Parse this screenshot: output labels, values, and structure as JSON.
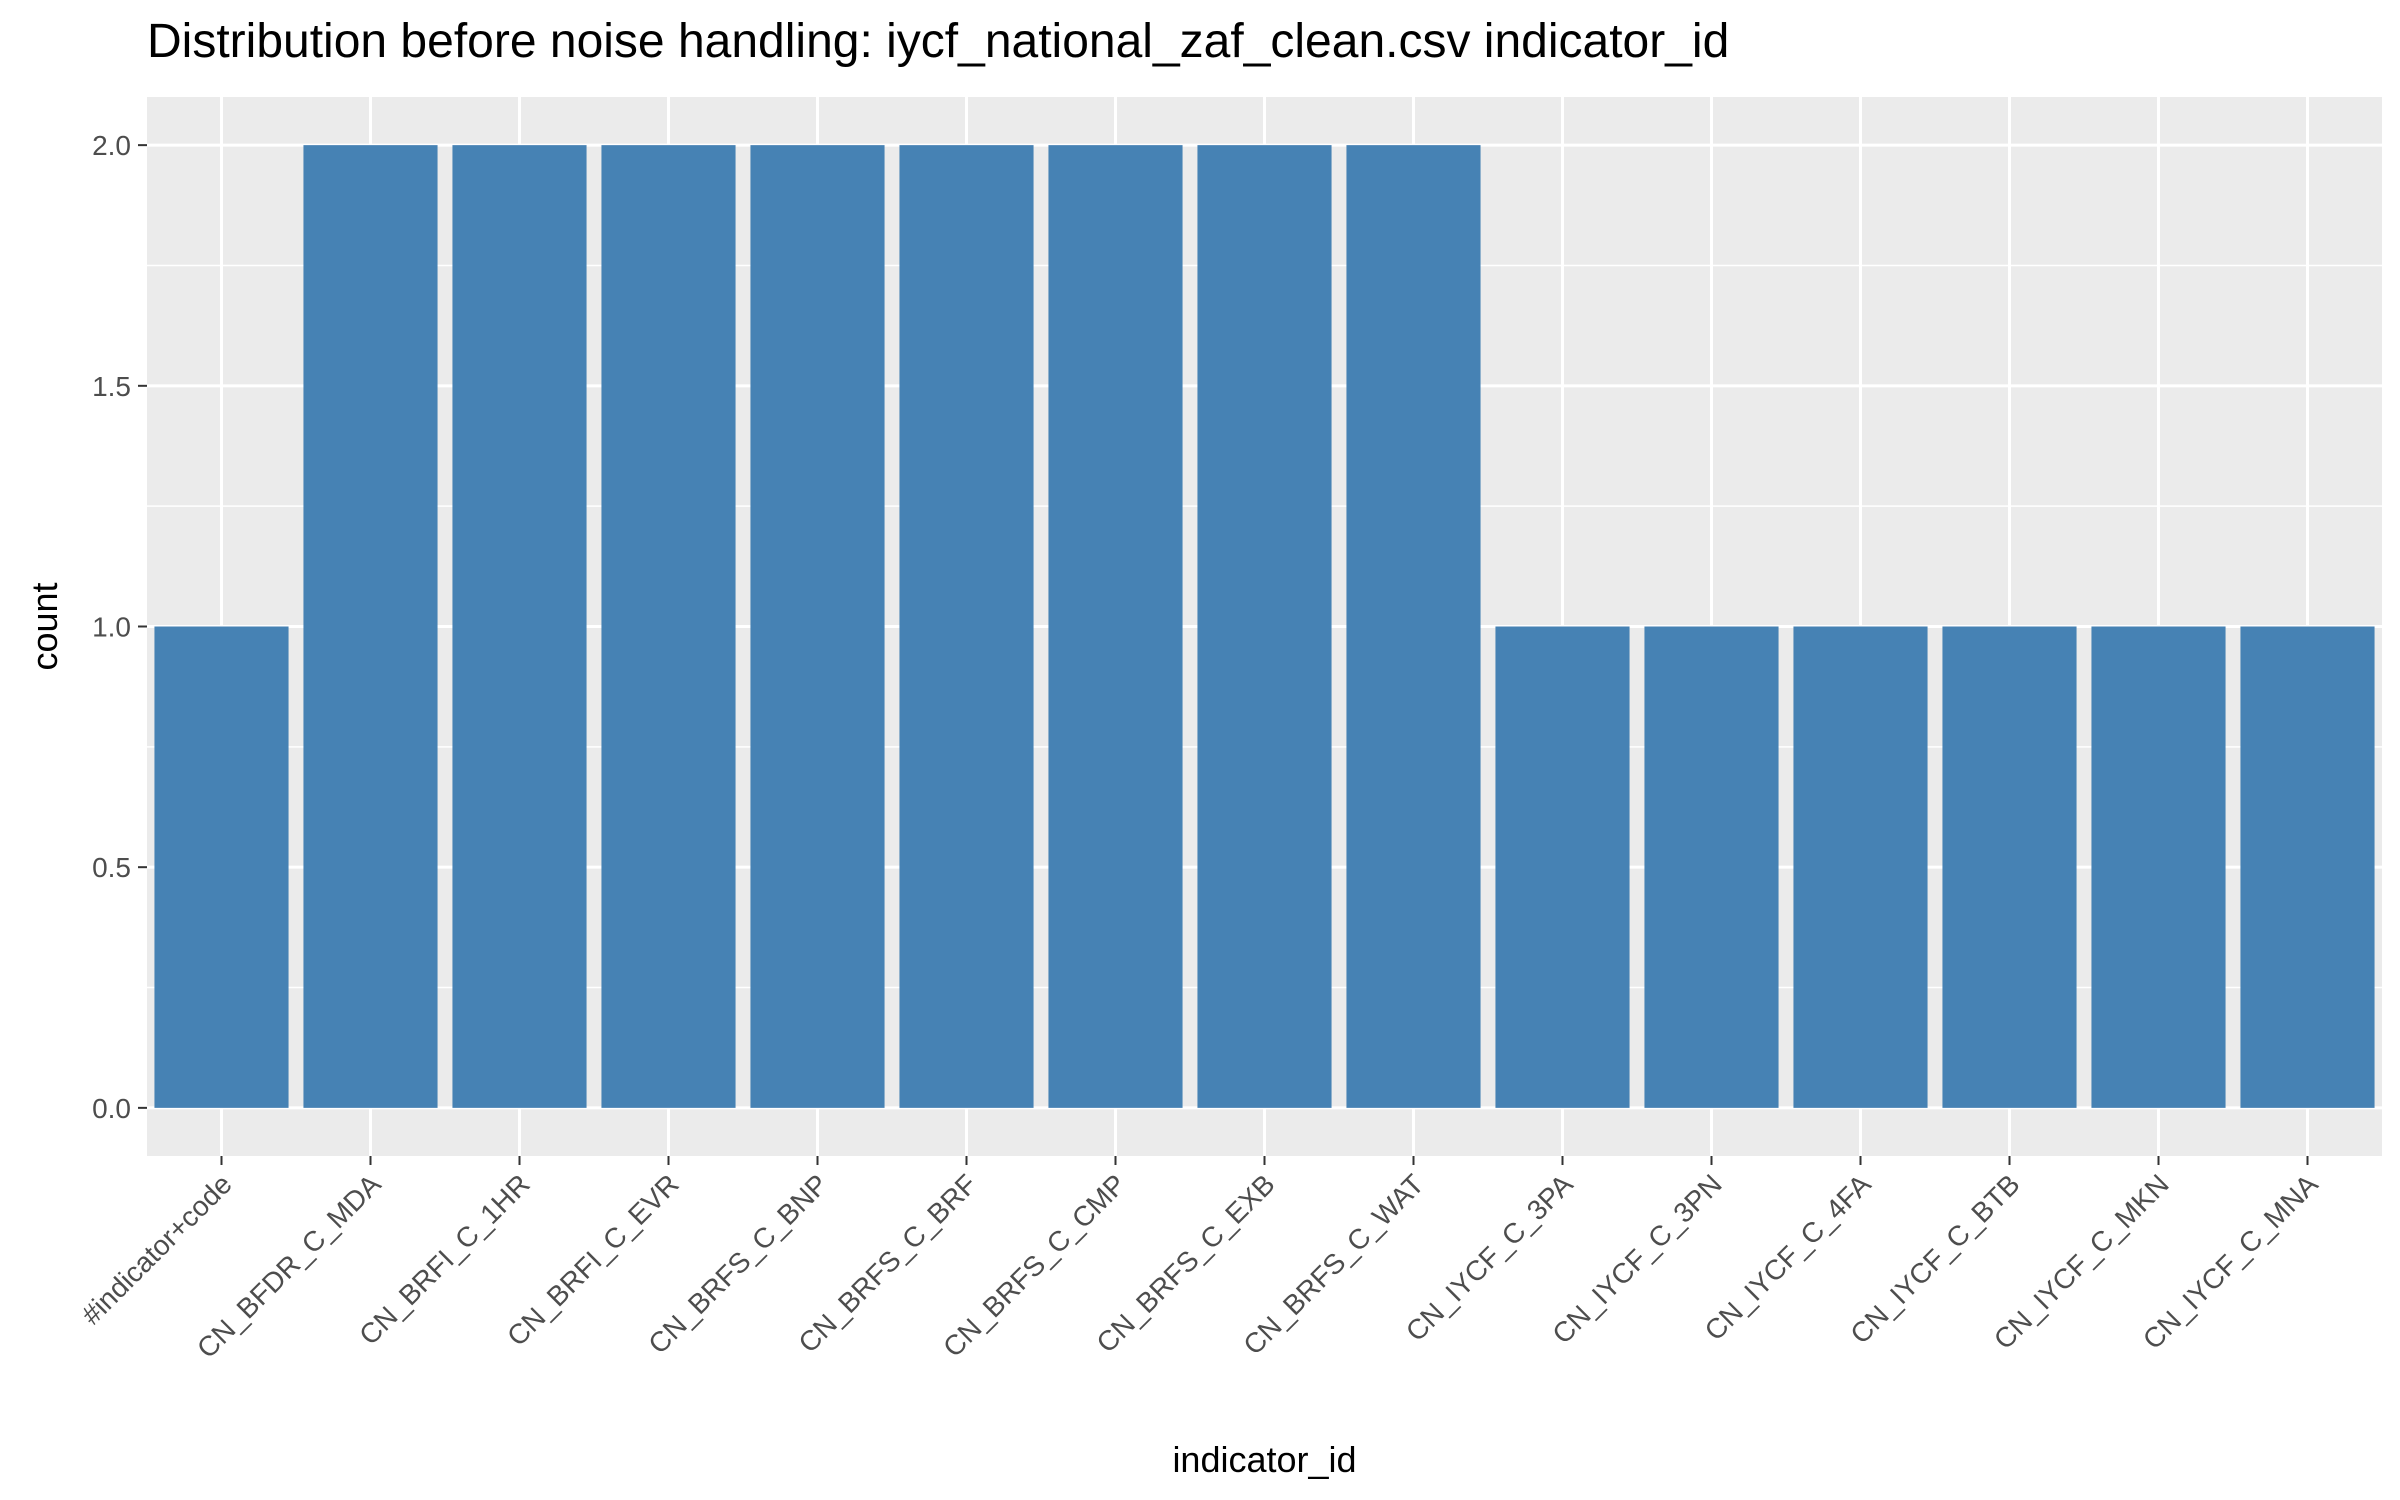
{
  "chart_data": {
    "type": "bar",
    "title": "Distribution before noise handling: iycf_national_zaf_clean.csv indicator_id",
    "xlabel": "indicator_id",
    "ylabel": "count",
    "categories": [
      "#indicator+code",
      "CN_BFDR_C_MDA",
      "CN_BRFI_C_1HR",
      "CN_BRFI_C_EVR",
      "CN_BRFS_C_BNP",
      "CN_BRFS_C_BRF",
      "CN_BRFS_C_CMP",
      "CN_BRFS_C_EXB",
      "CN_BRFS_C_WAT",
      "CN_IYCF_C_3PA",
      "CN_IYCF_C_3PN",
      "CN_IYCF_C_4FA",
      "CN_IYCF_C_BTB",
      "CN_IYCF_C_MKN",
      "CN_IYCF_C_MNA"
    ],
    "values": [
      1,
      2,
      2,
      2,
      2,
      2,
      2,
      2,
      2,
      1,
      1,
      1,
      1,
      1,
      1
    ],
    "ylim": [
      -0.1,
      2.1
    ],
    "yticks": [
      "0.0",
      "0.5",
      "1.0",
      "1.5",
      "2.0"
    ],
    "grid": true,
    "legend": "none",
    "colors": {
      "bar": "#4682B4",
      "panel": "#EBEBEB",
      "grid": "#FFFFFF",
      "text": "#4D4D4D",
      "tick": "#333333"
    }
  }
}
